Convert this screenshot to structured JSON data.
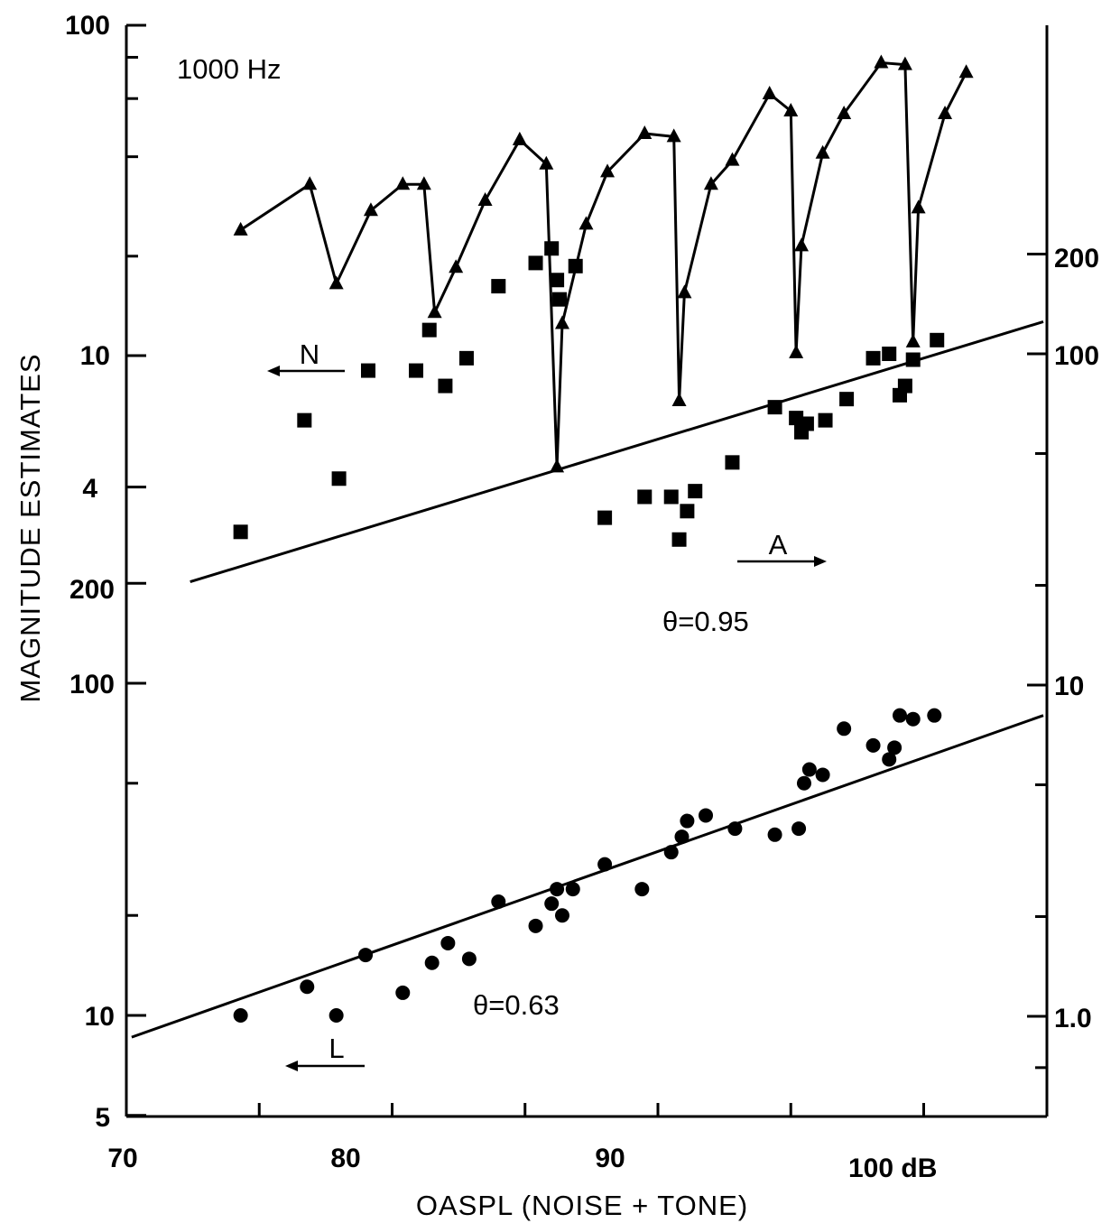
{
  "figure": {
    "frequency_label": "1000 Hz",
    "y_title": "MAGNITUDE ESTIMATES",
    "x_title": "OASPL  (NOISE + TONE)",
    "theta_A": "θ=0.95",
    "theta_L": "θ=0.63",
    "label_N": "N",
    "label_A": "A",
    "label_L": "L"
  },
  "chart_data": {
    "type": "scatter",
    "xlabel": "OASPL  (NOISE + TONE)",
    "ylabel": "MAGNITUDE ESTIMATES",
    "xlim": [
      70,
      104.5
    ],
    "x_ticks": [
      70,
      75,
      80,
      85,
      90,
      95,
      100
    ],
    "x_tick_labels": [
      {
        "value": 70,
        "label": "70"
      },
      {
        "value": 80,
        "label": "80"
      },
      {
        "value": 90,
        "label": "90"
      },
      {
        "value": 100,
        "label": "100 dB"
      }
    ],
    "axes": {
      "left_upper": {
        "scale": "log",
        "range": [
          3.5,
          100
        ],
        "major_labels": [
          {
            "value": 100,
            "label": "100"
          },
          {
            "value": 10,
            "label": "10"
          },
          {
            "value": 4,
            "label": "4"
          }
        ]
      },
      "left_lower": {
        "scale": "log",
        "range": [
          5,
          220
        ],
        "major_labels": [
          {
            "value": 200,
            "label": "200"
          },
          {
            "value": 100,
            "label": "100"
          },
          {
            "value": 10,
            "label": "10"
          },
          {
            "value": 5,
            "label": "5"
          }
        ]
      },
      "right": {
        "scale": "log",
        "range": [
          0.55,
          220
        ],
        "major_labels": [
          {
            "value": 200,
            "label": "200"
          },
          {
            "value": 100,
            "label": "100"
          },
          {
            "value": 10,
            "label": "10"
          },
          {
            "value": 1,
            "label": "1.0"
          }
        ]
      }
    },
    "series": [
      {
        "key": "N",
        "marker": "triangle",
        "connected": true,
        "axis": "left_upper",
        "points": [
          [
            74.3,
            24
          ],
          [
            76.9,
            33
          ],
          [
            77.9,
            16.5
          ],
          [
            79.2,
            27.5
          ],
          [
            80.4,
            33
          ],
          [
            81.2,
            33
          ],
          [
            81.6,
            13.5
          ],
          [
            82.4,
            18.5
          ],
          [
            83.5,
            29.5
          ],
          [
            84.8,
            45
          ],
          [
            85.8,
            38
          ],
          [
            86.2,
            4.6
          ],
          [
            86.4,
            12.5
          ],
          [
            87.3,
            25
          ],
          [
            88.1,
            36
          ],
          [
            89.5,
            47
          ],
          [
            90.6,
            46
          ],
          [
            90.8,
            7.3
          ],
          [
            91.0,
            15.5
          ],
          [
            92.0,
            33
          ],
          [
            92.8,
            39
          ],
          [
            94.2,
            62
          ],
          [
            95.0,
            55
          ],
          [
            95.2,
            10.2
          ],
          [
            95.4,
            21.5
          ],
          [
            96.2,
            41
          ],
          [
            97.0,
            54
          ],
          [
            98.4,
            77
          ],
          [
            99.3,
            76
          ],
          [
            99.6,
            11
          ],
          [
            99.8,
            28
          ],
          [
            100.8,
            54
          ],
          [
            101.6,
            72
          ]
        ]
      },
      {
        "key": "A",
        "marker": "square",
        "connected": false,
        "axis": "right",
        "fit_line": {
          "x": [
            72.4,
            104.5
          ],
          "y": [
            20.5,
            125
          ]
        },
        "points": [
          [
            74.3,
            29
          ],
          [
            76.7,
            63
          ],
          [
            78.0,
            42
          ],
          [
            79.1,
            89
          ],
          [
            80.9,
            89
          ],
          [
            81.4,
            118
          ],
          [
            82.0,
            80
          ],
          [
            82.8,
            97
          ],
          [
            84.0,
            160
          ],
          [
            85.4,
            188
          ],
          [
            86.0,
            208
          ],
          [
            86.2,
            167
          ],
          [
            86.3,
            146
          ],
          [
            86.9,
            184
          ],
          [
            88.0,
            32
          ],
          [
            89.5,
            37
          ],
          [
            90.5,
            37
          ],
          [
            90.8,
            27.5
          ],
          [
            91.1,
            33.5
          ],
          [
            91.4,
            38.5
          ],
          [
            92.8,
            47
          ],
          [
            94.4,
            69
          ],
          [
            95.2,
            64
          ],
          [
            95.4,
            58
          ],
          [
            95.6,
            61.5
          ],
          [
            96.3,
            63
          ],
          [
            97.1,
            73
          ],
          [
            98.1,
            97
          ],
          [
            98.7,
            100
          ],
          [
            99.1,
            75
          ],
          [
            99.3,
            80
          ],
          [
            99.6,
            96
          ],
          [
            100.5,
            110
          ]
        ]
      },
      {
        "key": "L",
        "marker": "circle",
        "connected": false,
        "axis": "left_lower",
        "fit_line": {
          "x": [
            70.2,
            104.5
          ],
          "y": [
            8.6,
            80
          ]
        },
        "points": [
          [
            74.3,
            10
          ],
          [
            76.8,
            12.2
          ],
          [
            77.9,
            10
          ],
          [
            79.0,
            15.2
          ],
          [
            80.4,
            11.7
          ],
          [
            81.5,
            14.4
          ],
          [
            82.1,
            16.5
          ],
          [
            82.9,
            14.8
          ],
          [
            84.0,
            22
          ],
          [
            85.4,
            18.6
          ],
          [
            86.0,
            21.7
          ],
          [
            86.2,
            24
          ],
          [
            86.4,
            20
          ],
          [
            86.8,
            24
          ],
          [
            88.0,
            28.5
          ],
          [
            89.4,
            24
          ],
          [
            90.5,
            31
          ],
          [
            90.9,
            34.5
          ],
          [
            91.1,
            38.5
          ],
          [
            91.8,
            40
          ],
          [
            92.9,
            36.5
          ],
          [
            94.4,
            35
          ],
          [
            95.3,
            36.5
          ],
          [
            95.5,
            50
          ],
          [
            95.7,
            55
          ],
          [
            96.2,
            53
          ],
          [
            97.0,
            73
          ],
          [
            98.1,
            65
          ],
          [
            98.7,
            59
          ],
          [
            98.9,
            64
          ],
          [
            99.1,
            80
          ],
          [
            99.6,
            78
          ],
          [
            100.4,
            80
          ]
        ]
      }
    ],
    "annotations": [
      "1000 Hz",
      "N",
      "A",
      "L",
      "θ=0.95",
      "θ=0.63"
    ]
  }
}
